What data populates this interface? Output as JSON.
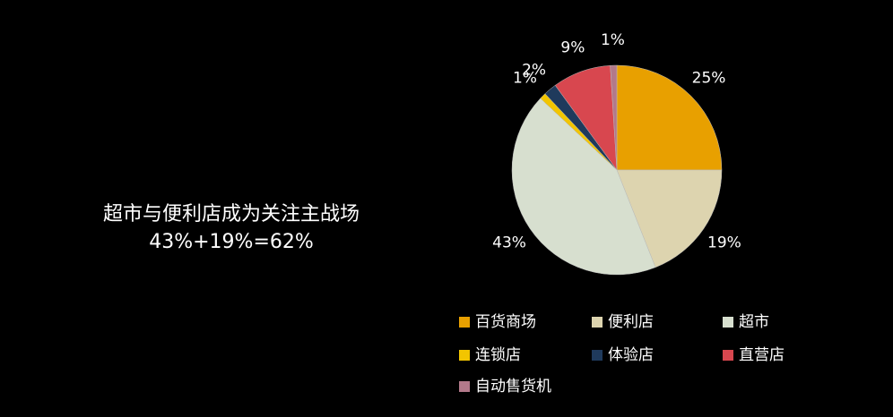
{
  "chart_data": {
    "type": "pie",
    "annotations": [
      "超市与便利店成为关注主战场",
      "43%+19%=62%"
    ],
    "categories": [
      "百货商场",
      "便利店",
      "超市",
      "连锁店",
      "体验店",
      "直营店",
      "自动售货机"
    ],
    "values": [
      25,
      19,
      43,
      1,
      2,
      9,
      1
    ],
    "value_labels": [
      "25%",
      "19%",
      "43%",
      "1%",
      "2%",
      "9%",
      "1%"
    ],
    "colors": [
      "#e8a000",
      "#ddd4af",
      "#d7dfcf",
      "#f2c500",
      "#1f3a5c",
      "#d8474f",
      "#b3798a"
    ]
  }
}
